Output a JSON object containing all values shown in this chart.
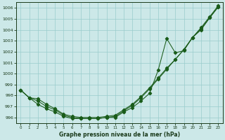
{
  "xlabel": "Graphe pression niveau de la mer (hPa)",
  "ylim": [
    995.5,
    1006.5
  ],
  "xlim": [
    -0.5,
    23.5
  ],
  "yticks": [
    996,
    997,
    998,
    999,
    1000,
    1001,
    1002,
    1003,
    1004,
    1005,
    1006
  ],
  "xticks": [
    0,
    1,
    2,
    3,
    4,
    5,
    6,
    7,
    8,
    9,
    10,
    11,
    12,
    13,
    14,
    15,
    16,
    17,
    18,
    19,
    20,
    21,
    22,
    23
  ],
  "bg_color": "#cce8e8",
  "grid_color": "#99cccc",
  "line_color": "#1a5c1a",
  "line1": [
    998.5,
    997.8,
    997.7,
    997.2,
    996.8,
    996.3,
    996.1,
    996.0,
    996.0,
    996.0,
    996.1,
    996.2,
    996.7,
    997.2,
    997.9,
    998.7,
    999.6,
    1000.5,
    1001.3,
    1002.2,
    1003.3,
    1004.2,
    1005.2,
    1006.2
  ],
  "line2": [
    998.5,
    997.8,
    997.5,
    997.0,
    996.7,
    996.2,
    996.0,
    995.9,
    995.9,
    995.9,
    996.0,
    996.1,
    996.6,
    997.1,
    997.8,
    998.6,
    999.5,
    1000.4,
    1001.3,
    1002.2,
    1003.3,
    1004.1,
    1005.1,
    1006.1
  ],
  "line3": [
    998.5,
    997.8,
    997.2,
    996.8,
    996.5,
    996.1,
    995.9,
    995.9,
    995.9,
    995.9,
    996.0,
    996.0,
    996.5,
    996.9,
    997.5,
    998.2,
    1000.3,
    1003.2,
    1001.9,
    1002.1,
    1003.3,
    1004.0,
    1005.1,
    1006.1
  ]
}
